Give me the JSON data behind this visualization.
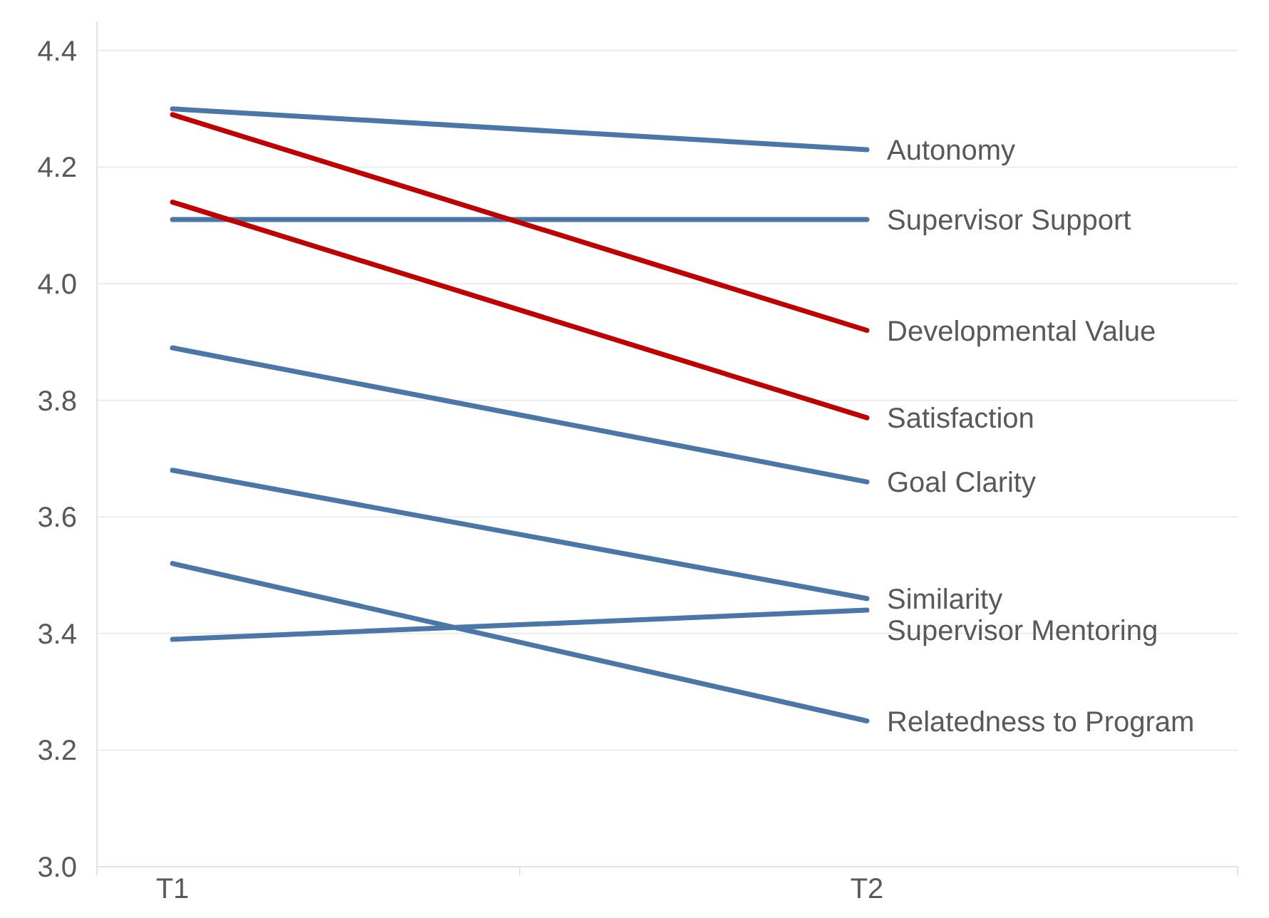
{
  "chart_data": {
    "type": "line",
    "categories": [
      "T1",
      "T2"
    ],
    "ylim": [
      3.0,
      4.45
    ],
    "yticks": [
      {
        "value": 3.0,
        "label": "3.0"
      },
      3.2,
      3.4,
      3.6,
      3.8,
      {
        "value": 4.0,
        "label": "4.0"
      },
      4.2,
      4.4
    ],
    "grid": "y",
    "marker": "none",
    "series": [
      {
        "name": "Autonomy",
        "color": "#4a76a8",
        "values": [
          4.3,
          4.23
        ]
      },
      {
        "name": "Supervisor Support",
        "color": "#4a76a8",
        "values": [
          4.11,
          4.11
        ]
      },
      {
        "name": "Developmental Value",
        "color": "#c00000",
        "values": [
          4.29,
          3.92
        ]
      },
      {
        "name": "Satisfaction",
        "color": "#c00000",
        "values": [
          4.14,
          3.77
        ]
      },
      {
        "name": "Goal Clarity",
        "color": "#4a76a8",
        "values": [
          3.89,
          3.66
        ]
      },
      {
        "name": "Similarity",
        "color": "#4a76a8",
        "values": [
          3.68,
          3.46
        ]
      },
      {
        "name": "Supervisor Mentoring",
        "color": "#4a76a8",
        "values": [
          3.39,
          3.44
        ]
      },
      {
        "name": "Relatedness to Program",
        "color": "#4a76a8",
        "values": [
          3.52,
          3.25
        ]
      }
    ]
  }
}
